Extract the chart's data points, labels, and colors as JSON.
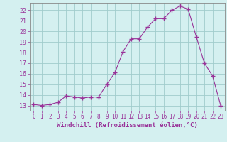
{
  "x": [
    0,
    1,
    2,
    3,
    4,
    5,
    6,
    7,
    8,
    9,
    10,
    11,
    12,
    13,
    14,
    15,
    16,
    17,
    18,
    19,
    20,
    21,
    22,
    23
  ],
  "y": [
    13.1,
    13.0,
    13.1,
    13.3,
    13.9,
    13.8,
    13.7,
    13.8,
    13.8,
    15.0,
    16.1,
    18.1,
    19.3,
    19.3,
    20.4,
    21.2,
    21.2,
    22.0,
    22.4,
    22.1,
    19.5,
    17.0,
    15.8,
    13.0
  ],
  "xlim": [
    -0.5,
    23.5
  ],
  "ylim": [
    12.5,
    22.7
  ],
  "yticks": [
    13,
    14,
    15,
    16,
    17,
    18,
    19,
    20,
    21,
    22
  ],
  "xticks": [
    0,
    1,
    2,
    3,
    4,
    5,
    6,
    7,
    8,
    9,
    10,
    11,
    12,
    13,
    14,
    15,
    16,
    17,
    18,
    19,
    20,
    21,
    22,
    23
  ],
  "xlabel": "Windchill (Refroidissement éolien,°C)",
  "line_color": "#993399",
  "marker": "+",
  "marker_size": 4,
  "bg_color": "#d4f0f0",
  "grid_color": "#a0cccc",
  "tick_color": "#993399",
  "label_color": "#993399",
  "axis_color": "#888888",
  "tick_fontsize": 5.5,
  "ytick_fontsize": 6.0,
  "xlabel_fontsize": 6.5
}
